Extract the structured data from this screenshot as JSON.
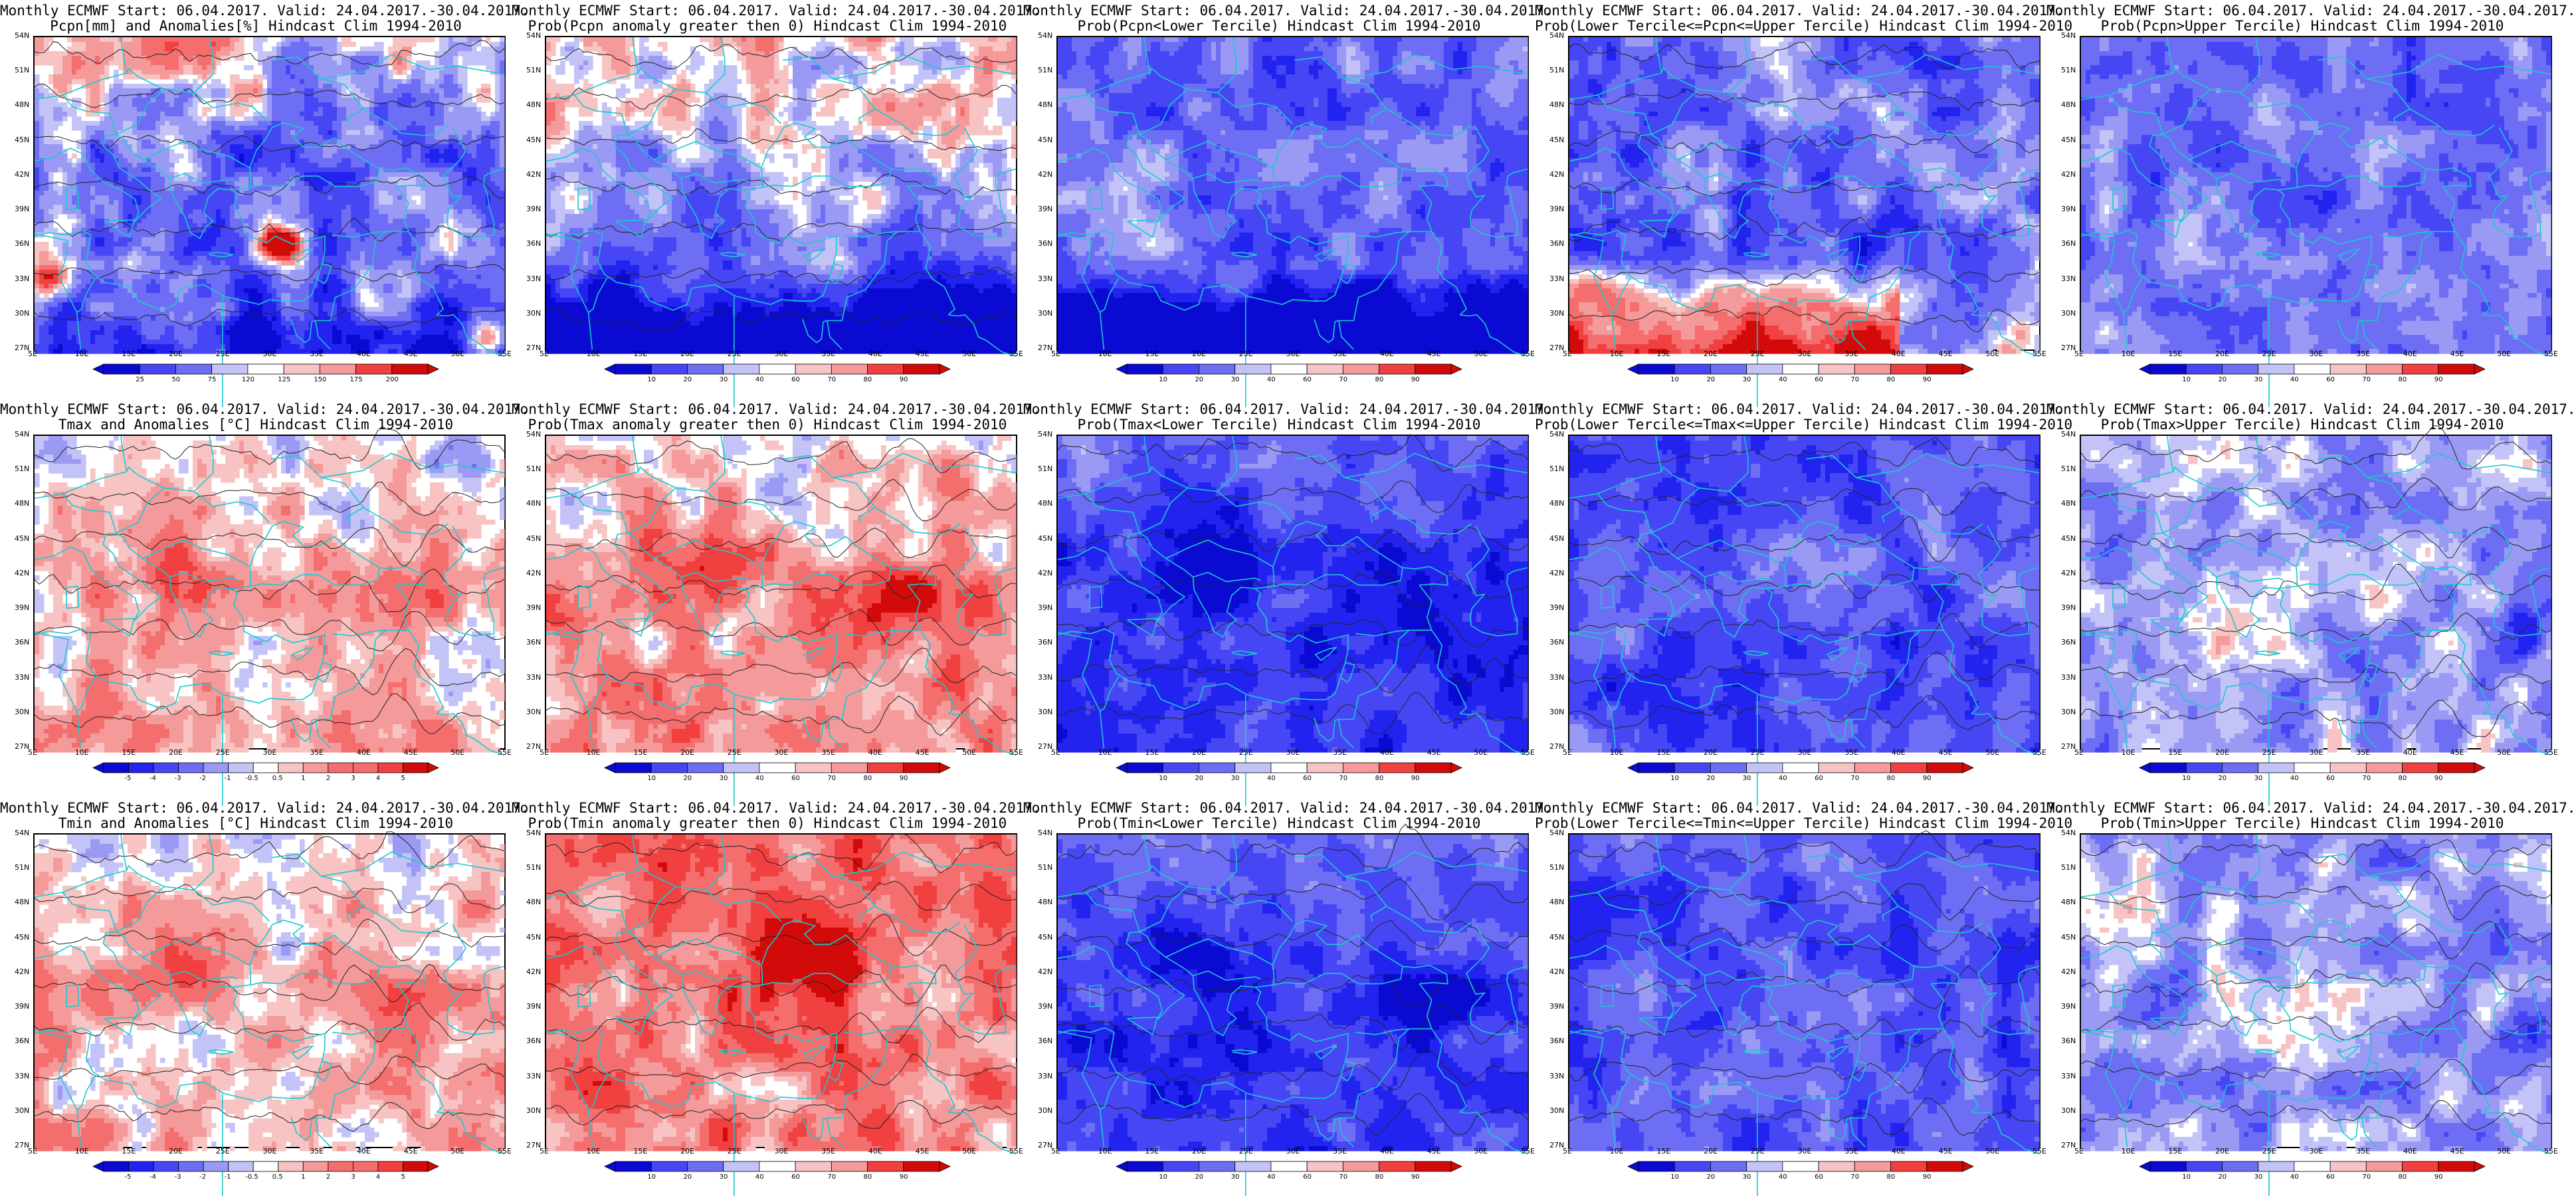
{
  "header": {
    "line1": "Monthly ECMWF Start: 06.04.2017. Valid: 24.04.2017.-30.04.2017."
  },
  "axes": {
    "lat_labels": [
      "54N",
      "51N",
      "48N",
      "45N",
      "42N",
      "39N",
      "36N",
      "33N",
      "30N",
      "27N"
    ],
    "lon_labels": [
      "5E",
      "10E",
      "15E",
      "20E",
      "25E",
      "30E",
      "35E",
      "40E",
      "45E",
      "50E",
      "55E"
    ]
  },
  "colorbars": {
    "pcpn_anom": [
      "25",
      "50",
      "75",
      "120",
      "125",
      "150",
      "175",
      "200"
    ],
    "prob": [
      "10",
      "20",
      "30",
      "40",
      "60",
      "70",
      "80",
      "90"
    ],
    "temp_anom": [
      "-5",
      "-4",
      "-3",
      "-2",
      "-1",
      "-0.5",
      "0.5",
      "1",
      "2",
      "3",
      "4",
      "5"
    ]
  },
  "colors": {
    "map_line": "#19c9cf",
    "contour": "#222222",
    "palette": [
      "#0a0ad2",
      "#2323f0",
      "#4646f5",
      "#6e6ef5",
      "#9a9af5",
      "#c3c3f8",
      "#ffffff",
      "#f8c3c3",
      "#f59a9a",
      "#f56e6e",
      "#f04040",
      "#d20a0a"
    ]
  },
  "rows": [
    {
      "panels": [
        {
          "title": "Pcpn[mm] and Anomalies[%] Hindcast Clim 1994-2010",
          "colorbar": "pcpn_anom",
          "pattern": "precip_anom",
          "contours": true
        },
        {
          "title": "Prob(Pcpn anomaly greater then 0) Hindcast Clim 1994-2010",
          "colorbar": "prob",
          "pattern": "precip_prob",
          "contours": true
        },
        {
          "title": "Prob(Pcpn<Lower Tercile) Hindcast Clim 1994-2010",
          "colorbar": "prob",
          "pattern": "precip_lower",
          "contours": false
        },
        {
          "title": "Prob(Lower Tercile<=Pcpn<=Upper Tercile) Hindcast Clim 1994-2010",
          "colorbar": "prob",
          "pattern": "precip_mid",
          "contours": true
        },
        {
          "title": "Prob(Pcpn>Upper Tercile) Hindcast Clim 1994-2010",
          "colorbar": "prob",
          "pattern": "precip_upper",
          "contours": false
        }
      ]
    },
    {
      "panels": [
        {
          "title": "Tmax and Anomalies [°C] Hindcast Clim 1994-2010",
          "colorbar": "temp_anom",
          "pattern": "temp_anom",
          "contours": true
        },
        {
          "title": "Prob(Tmax anomaly greater then 0) Hindcast Clim 1994-2010",
          "colorbar": "prob",
          "pattern": "temp_prob",
          "contours": true
        },
        {
          "title": "Prob(Tmax<Lower Tercile) Hindcast Clim 1994-2010",
          "colorbar": "prob",
          "pattern": "temp_lower",
          "contours": true
        },
        {
          "title": "Prob(Lower Tercile<=Tmax<=Upper Tercile) Hindcast Clim 1994-2010",
          "colorbar": "prob",
          "pattern": "temp_mid",
          "contours": true
        },
        {
          "title": "Prob(Tmax>Upper Tercile) Hindcast Clim 1994-2010",
          "colorbar": "prob",
          "pattern": "temp_upper",
          "contours": true
        }
      ]
    },
    {
      "panels": [
        {
          "title": "Tmin and Anomalies [°C] Hindcast Clim 1994-2010",
          "colorbar": "temp_anom",
          "pattern": "temp_anom",
          "contours": true
        },
        {
          "title": "Prob(Tmin anomaly greater then 0) Hindcast Clim 1994-2010",
          "colorbar": "prob",
          "pattern": "temp_prob_strong",
          "contours": true
        },
        {
          "title": "Prob(Tmin<Lower Tercile) Hindcast Clim 1994-2010",
          "colorbar": "prob",
          "pattern": "temp_lower",
          "contours": true
        },
        {
          "title": "Prob(Lower Tercile<=Tmin<=Upper Tercile) Hindcast Clim 1994-2010",
          "colorbar": "prob",
          "pattern": "temp_mid",
          "contours": true
        },
        {
          "title": "Prob(Tmin>Upper Tercile) Hindcast Clim 1994-2010",
          "colorbar": "prob",
          "pattern": "temp_upper",
          "contours": true
        }
      ]
    }
  ]
}
